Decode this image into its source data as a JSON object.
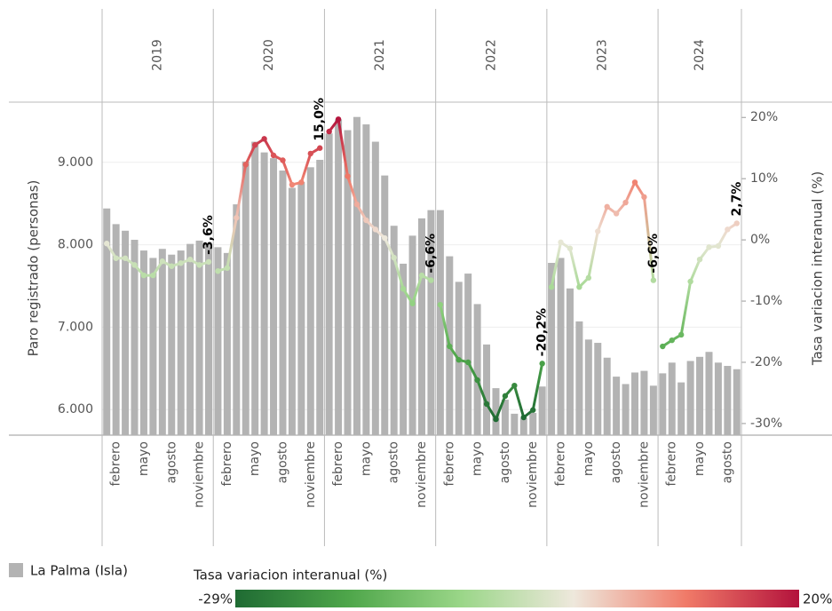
{
  "chart_data": {
    "type": "combo",
    "ylabel": "Paro registrado (personas)",
    "y2label": "Tasa variacion interanual (%)",
    "years": [
      "2019",
      "2020",
      "2021",
      "2022",
      "2023",
      "2024"
    ],
    "categories": [
      null,
      "febrero",
      null,
      null,
      "mayo",
      null,
      null,
      "agosto",
      null,
      null,
      "noviembre",
      null,
      null,
      "febrero",
      null,
      null,
      "mayo",
      null,
      null,
      "agosto",
      null,
      null,
      "noviembre",
      null,
      null,
      "febrero",
      null,
      null,
      "mayo",
      null,
      null,
      "agosto",
      null,
      null,
      "noviembre",
      null,
      null,
      "febrero",
      null,
      null,
      "mayo",
      null,
      null,
      "agosto",
      null,
      null,
      "noviembre",
      null,
      null,
      "febrero",
      null,
      null,
      "mayo",
      null,
      null,
      "agosto",
      null,
      null,
      "noviembre",
      null,
      null,
      "febrero",
      null,
      null,
      "mayo",
      null,
      null,
      "agosto",
      null
    ],
    "ylim": [
      5690,
      9730
    ],
    "yticks": [
      {
        "value": 6000,
        "label": "6.000"
      },
      {
        "value": 7000,
        "label": "7.000"
      },
      {
        "value": 8000,
        "label": "8.000"
      },
      {
        "value": 9000,
        "label": "9.000"
      }
    ],
    "y2lim": [
      -31.9,
      22.5
    ],
    "y2ticks": [
      {
        "value": -30,
        "label": "-30%"
      },
      {
        "value": -20,
        "label": "-20%"
      },
      {
        "value": -10,
        "label": "-10%"
      },
      {
        "value": 0,
        "label": "0%"
      },
      {
        "value": 10,
        "label": "10%"
      },
      {
        "value": 20,
        "label": "20%"
      }
    ],
    "grid": true,
    "series": [
      {
        "name": "La Palma (Isla)",
        "type": "bar",
        "color": "#b3b3b3",
        "values": [
          8440,
          8250,
          8170,
          8060,
          7930,
          7840,
          7950,
          7880,
          7930,
          8010,
          8050,
          8000,
          7970,
          7900,
          8490,
          9010,
          9250,
          9120,
          9050,
          8900,
          8690,
          8760,
          8940,
          9030,
          9350,
          9520,
          9390,
          9550,
          9460,
          9250,
          8840,
          8230,
          7770,
          8110,
          8320,
          8420,
          8420,
          7860,
          7550,
          7650,
          7280,
          6790,
          6260,
          6120,
          5950,
          5900,
          5960,
          6280,
          7780,
          7840,
          7470,
          7070,
          6850,
          6810,
          6630,
          6400,
          6310,
          6450,
          6470,
          6290,
          6440,
          6570,
          6330,
          6590,
          6640,
          6700,
          6570,
          6530,
          6490
        ]
      },
      {
        "type": "line",
        "axis": "y2",
        "values": [
          -0.6,
          -3.0,
          -3.0,
          -4.1,
          -5.8,
          -5.8,
          -3.5,
          -4.3,
          -3.8,
          -3.2,
          -4.1,
          -3.6,
          -5.1,
          -4.6,
          3.6,
          12.3,
          15.5,
          16.5,
          13.8,
          13.0,
          9.0,
          9.4,
          14.1,
          15.0,
          17.7,
          19.7,
          10.4,
          5.8,
          3.2,
          1.7,
          0.3,
          -2.9,
          -8.0,
          -10.4,
          -5.8,
          -6.6,
          -10.6,
          -17.4,
          -19.6,
          -20.0,
          -22.9,
          -26.8,
          -29.3,
          -25.5,
          -23.8,
          -29.0,
          -27.8,
          -20.2,
          -7.7,
          -0.4,
          -1.4,
          -7.7,
          -6.2,
          1.4,
          5.4,
          4.3,
          6.1,
          9.4,
          7.0,
          -6.6,
          -17.4,
          -16.4,
          -15.5,
          -6.8,
          -3.2,
          -1.2,
          -1.0,
          1.7,
          2.7
        ],
        "value_labels": [
          null,
          null,
          null,
          null,
          null,
          null,
          null,
          null,
          null,
          null,
          null,
          "-3,6%",
          null,
          null,
          null,
          null,
          null,
          null,
          null,
          null,
          null,
          null,
          null,
          "15,0%",
          null,
          null,
          null,
          null,
          null,
          null,
          null,
          null,
          null,
          null,
          null,
          "-6,6%",
          null,
          null,
          null,
          null,
          null,
          null,
          null,
          null,
          null,
          null,
          null,
          "-20,2%",
          null,
          null,
          null,
          null,
          null,
          null,
          null,
          null,
          null,
          null,
          null,
          "-6,6%",
          null,
          null,
          null,
          null,
          null,
          null,
          null,
          null,
          "2,7%"
        ]
      }
    ],
    "color_scale": {
      "title": "Tasa variacion interanual (%)",
      "min": {
        "value": -29,
        "label": "-29%"
      },
      "max": {
        "value": 20,
        "label": "20%"
      },
      "colors": [
        "#1f6b33",
        "#4ea64a",
        "#9ad688",
        "#eee8dc",
        "#f07a68",
        "#b3123c"
      ]
    }
  }
}
